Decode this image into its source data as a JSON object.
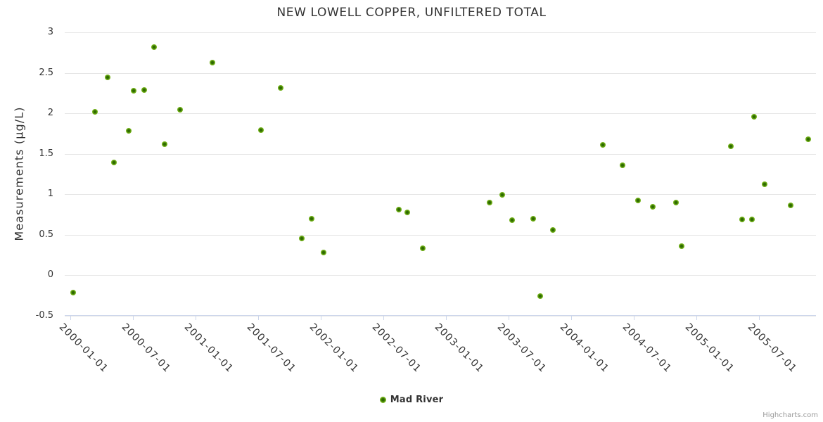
{
  "colors": {
    "point_outer": "#7cbb2a",
    "point_mid": "#6fae15",
    "point_inner": "#2e6a00",
    "grid_line": "#e6e6e6",
    "axis_line": "#ccd6eb",
    "text": "#333333",
    "credits_text": "#999999"
  },
  "chart_data": {
    "type": "scatter",
    "title": "NEW LOWELL COPPER, UNFILTERED TOTAL",
    "xlabel": "",
    "ylabel": "Measurements (µg/L)",
    "ylim": [
      -0.5,
      3
    ],
    "x_range": [
      "2000-01-01",
      "2005-12-17"
    ],
    "grid": true,
    "legend_position": "bottom-center",
    "credits": "Highcharts.com",
    "y_tick_values": [
      3,
      2.5,
      2,
      1.5,
      1,
      0.5,
      0,
      -0.5
    ],
    "y_tick_labels": [
      "3",
      "2.5",
      "2",
      "1.5",
      "1",
      "0.5",
      "0",
      "-0.5"
    ],
    "x_tick_labels": [
      "2000-01-01",
      "2000-07-01",
      "2001-01-01",
      "2001-07-01",
      "2002-01-01",
      "2002-07-01",
      "2003-01-01",
      "2003-07-01",
      "2004-01-01",
      "2004-07-01",
      "2005-01-01",
      "2005-07-01"
    ],
    "series": [
      {
        "name": "Mad River",
        "color": "#6fae15",
        "points": [
          {
            "x": "2000-01-10",
            "y": -0.22
          },
          {
            "x": "2000-03-14",
            "y": 2.02
          },
          {
            "x": "2000-04-19",
            "y": 2.44
          },
          {
            "x": "2000-05-08",
            "y": 1.39
          },
          {
            "x": "2000-06-21",
            "y": 1.78
          },
          {
            "x": "2000-07-05",
            "y": 2.28
          },
          {
            "x": "2000-08-04",
            "y": 2.29
          },
          {
            "x": "2000-09-02",
            "y": 2.82
          },
          {
            "x": "2000-10-03",
            "y": 1.62
          },
          {
            "x": "2000-11-17",
            "y": 2.04
          },
          {
            "x": "2001-02-20",
            "y": 2.63
          },
          {
            "x": "2001-07-11",
            "y": 1.79
          },
          {
            "x": "2001-09-06",
            "y": 2.31
          },
          {
            "x": "2001-11-08",
            "y": 0.45
          },
          {
            "x": "2001-12-05",
            "y": 0.7
          },
          {
            "x": "2002-01-09",
            "y": 0.28
          },
          {
            "x": "2002-08-18",
            "y": 0.81
          },
          {
            "x": "2002-09-11",
            "y": 0.77
          },
          {
            "x": "2002-10-26",
            "y": 0.33
          },
          {
            "x": "2003-05-08",
            "y": 0.9
          },
          {
            "x": "2003-06-14",
            "y": 0.99
          },
          {
            "x": "2003-07-13",
            "y": 0.68
          },
          {
            "x": "2003-09-13",
            "y": 0.7
          },
          {
            "x": "2003-10-04",
            "y": -0.26
          },
          {
            "x": "2003-11-09",
            "y": 0.56
          },
          {
            "x": "2004-04-04",
            "y": 1.61
          },
          {
            "x": "2004-05-30",
            "y": 1.36
          },
          {
            "x": "2004-07-15",
            "y": 0.92
          },
          {
            "x": "2004-08-28",
            "y": 0.84
          },
          {
            "x": "2004-11-02",
            "y": 0.9
          },
          {
            "x": "2004-11-20",
            "y": 0.36
          },
          {
            "x": "2005-04-12",
            "y": 1.59
          },
          {
            "x": "2005-05-15",
            "y": 0.69
          },
          {
            "x": "2005-06-12",
            "y": 0.69
          },
          {
            "x": "2005-06-19",
            "y": 1.96
          },
          {
            "x": "2005-07-19",
            "y": 1.12
          },
          {
            "x": "2005-10-04",
            "y": 0.86
          },
          {
            "x": "2005-11-23",
            "y": 1.68
          }
        ]
      }
    ]
  }
}
